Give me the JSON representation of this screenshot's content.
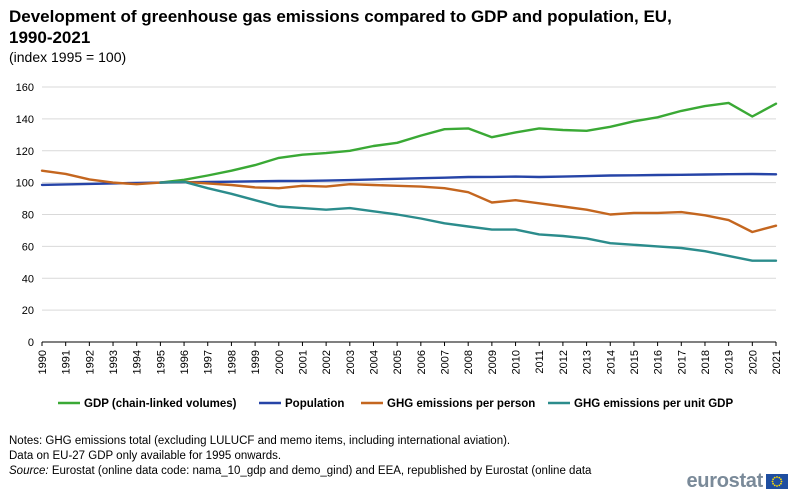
{
  "header": {
    "title": "Development of greenhouse gas emissions compared to GDP and population, EU, 1990-2021",
    "subtitle": "(index 1995 = 100)"
  },
  "chart_data": {
    "type": "line",
    "title": "Development of greenhouse gas emissions compared to GDP and population, EU, 1990-2021",
    "subtitle": "(index 1995 = 100)",
    "xlabel": "",
    "ylabel": "",
    "ylim": [
      0,
      160
    ],
    "yticks": [
      0,
      20,
      40,
      60,
      80,
      100,
      120,
      140,
      160
    ],
    "grid": "horizontal",
    "legend_position": "bottom",
    "categories": [
      "1990",
      "1991",
      "1992",
      "1993",
      "1994",
      "1995",
      "1996",
      "1997",
      "1998",
      "1999",
      "2000",
      "2001",
      "2002",
      "2003",
      "2004",
      "2005",
      "2006",
      "2007",
      "2008",
      "2009",
      "2010",
      "2011",
      "2012",
      "2013",
      "2014",
      "2015",
      "2016",
      "2017",
      "2018",
      "2019",
      "2020",
      "2021"
    ],
    "series": [
      {
        "name": "GDP (chain-linked volumes)",
        "color": "#3aa935",
        "start_index": 5,
        "values": [
          null,
          null,
          null,
          null,
          null,
          100,
          101.8,
          104.5,
          107.5,
          111,
          115.5,
          117.5,
          118.5,
          120,
          123,
          125,
          129.5,
          133.5,
          134,
          128.5,
          131.5,
          134,
          133,
          132.5,
          135,
          138.5,
          141,
          145,
          148,
          150,
          141.5,
          149.5
        ]
      },
      {
        "name": "Population",
        "color": "#2644a7",
        "values": [
          98.6,
          98.9,
          99.2,
          99.5,
          99.8,
          100,
          100.2,
          100.4,
          100.6,
          100.8,
          101,
          101.1,
          101.3,
          101.6,
          102,
          102.4,
          102.8,
          103.1,
          103.5,
          103.6,
          103.8,
          103.5,
          103.8,
          104.1,
          104.5,
          104.6,
          104.8,
          104.9,
          105.1,
          105.3,
          105.4,
          105.2
        ]
      },
      {
        "name": "GHG emissions per person",
        "color": "#c4661f",
        "values": [
          107.5,
          105.5,
          102,
          100,
          99,
          100,
          100.5,
          99.5,
          98.5,
          97,
          96.5,
          98,
          97.5,
          99,
          98.5,
          98,
          97.5,
          96.5,
          94,
          87.5,
          89,
          87,
          85,
          83,
          80,
          81,
          81,
          81.5,
          79.5,
          76.5,
          69,
          73
        ]
      },
      {
        "name": "GHG emissions per unit GDP",
        "color": "#2b8c8c",
        "start_index": 5,
        "values": [
          null,
          null,
          null,
          null,
          null,
          100,
          100.5,
          96.5,
          93,
          89,
          85,
          84,
          83,
          84,
          82,
          80,
          77.5,
          74.5,
          72.5,
          70.5,
          70.5,
          67.5,
          66.5,
          65,
          62,
          61,
          60,
          59,
          57,
          54,
          51,
          51
        ]
      }
    ]
  },
  "notes": {
    "line1": "Notes: GHG emissions total (excluding LULUCF and memo items, including international aviation).",
    "line2": "Data on EU-27 GDP only available for 1995 onwards.",
    "source_label": "Source:",
    "source_text": " Eurostat (online data code: nama_10_gdp and demo_gind) and EEA, republished by Eurostat (online data"
  },
  "logo": {
    "text": "eurostat"
  }
}
